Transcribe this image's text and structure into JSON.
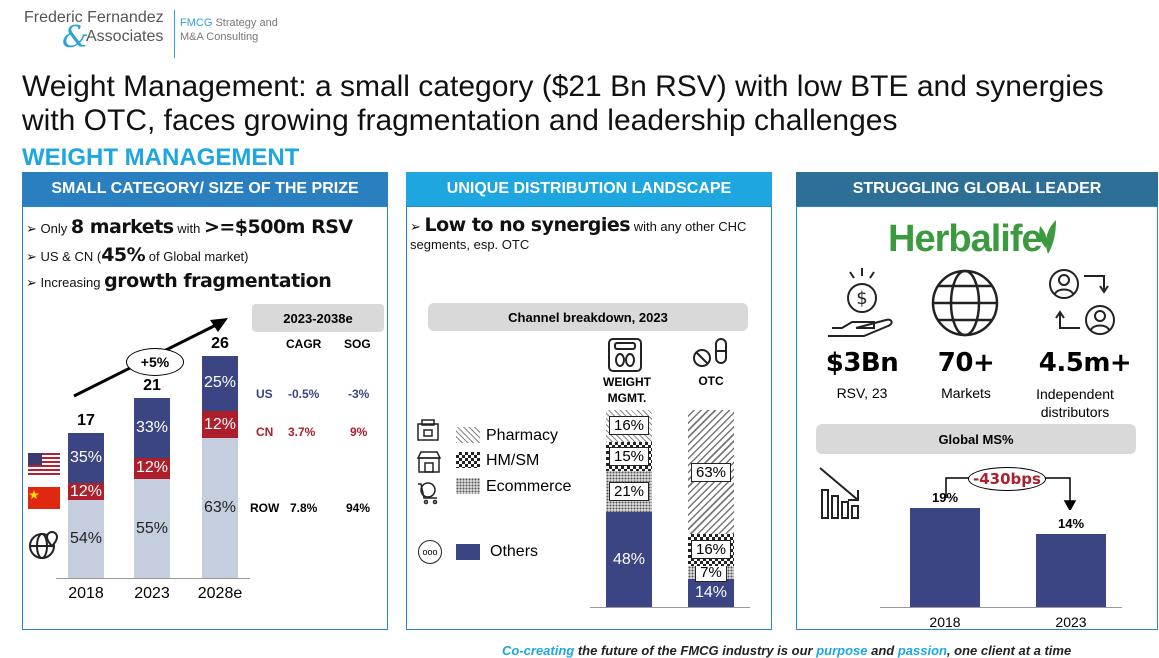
{
  "logo": {
    "line1": "Frederic Fernandez",
    "amp": "&",
    "line2": "Associates",
    "tag1": "FMCG",
    "tag1b": " Strategy and",
    "tag2": "M&A Consulting"
  },
  "title": "Weight Management: a small category ($21 Bn RSV) with low BTE and synergies with OTC, faces growing fragmentation and leadership challenges",
  "subtitle": "WEIGHT MANAGEMENT",
  "colors": {
    "navy": "#3c4583",
    "red": "#ad1f2b",
    "light": "#c5cedf",
    "blue": "#1ea6e0",
    "panelHead": "#2a7fc0"
  },
  "panel1": {
    "header": "SMALL CATEGORY/ SIZE OF THE PRIZE",
    "b1a": "Only ",
    "b1b": "8 markets",
    "b1c": " with ",
    "b1d": ">=$500m RSV",
    "b2a": "US & CN (",
    "b2b": "45%",
    "b2c": " of Global market)",
    "b3a": "Increasing ",
    "b3b": "growth fragmentation",
    "period": "2023-2038e",
    "cagr_h": "CAGR",
    "sog_h": "SOG",
    "growth": "+5%",
    "rows": [
      {
        "label": "US",
        "cagr": "-0.5%",
        "sog": "-3%"
      },
      {
        "label": "CN",
        "cagr": "3.7%",
        "sog": "9%"
      },
      {
        "label": "ROW",
        "cagr": "7.8%",
        "sog": "94%"
      }
    ],
    "icons": [
      "us-flag-icon",
      "cn-flag-icon",
      "globe-pin-icon"
    ]
  },
  "chart_data": [
    {
      "type": "bar",
      "categories": [
        "2018",
        "2023",
        "2028e"
      ],
      "totals": [
        17,
        21,
        26
      ],
      "series": [
        {
          "name": "ROW",
          "values": [
            54,
            55,
            63
          ],
          "labels": [
            "54%",
            "55%",
            "63%"
          ]
        },
        {
          "name": "CN",
          "values": [
            12,
            12,
            12
          ],
          "labels": [
            "12%",
            "12%",
            "12%"
          ]
        },
        {
          "name": "US",
          "values": [
            35,
            33,
            25
          ],
          "labels": [
            "35%",
            "33%",
            "25%"
          ]
        }
      ]
    },
    {
      "type": "bar",
      "title": "Channel breakdown, 2023",
      "categories": [
        "WEIGHT MGMT.",
        "OTC"
      ],
      "series": [
        {
          "name": "Others",
          "values": [
            48,
            14
          ],
          "labels": [
            "48%",
            "14%"
          ]
        },
        {
          "name": "Ecommerce",
          "values": [
            21,
            7
          ],
          "labels": [
            "21%",
            "7%"
          ]
        },
        {
          "name": "HM/SM",
          "values": [
            15,
            16
          ],
          "labels": [
            "15%",
            "16%"
          ]
        },
        {
          "name": "Pharmacy",
          "values": [
            16,
            63
          ],
          "labels": [
            "16%",
            "63%"
          ]
        }
      ]
    },
    {
      "type": "bar",
      "title": "Global MS%",
      "categories": [
        "2018",
        "2023"
      ],
      "values": [
        19,
        14
      ],
      "labels": [
        "19%",
        "14%"
      ],
      "annotation": "-430bps"
    }
  ],
  "panel2": {
    "header": "UNIQUE DISTRIBUTION LANDSCAPE",
    "b1a": "Low to no synergies",
    "b1b": " with any other CHC segments, esp. OTC",
    "legend": [
      "Pharmacy",
      "HM/SM",
      "Ecommerce",
      "Others"
    ],
    "cat1a": "WEIGHT",
    "cat1b": "MGMT.",
    "cat2": "OTC"
  },
  "panel3": {
    "header": "STRUGGLING GLOBAL LEADER",
    "brand": "Herbalife",
    "kpis": [
      {
        "value": "$3Bn",
        "label": "RSV, 23"
      },
      {
        "value": "70+",
        "label": "Markets"
      },
      {
        "value": "4.5m+",
        "label": "Independent distributors"
      }
    ]
  },
  "footer": {
    "a": "Co-creating",
    "b": " the future of the FMCG industry is our ",
    "c": "purpose",
    "d": " and ",
    "e": "passion",
    "f": ", one client at a time"
  }
}
